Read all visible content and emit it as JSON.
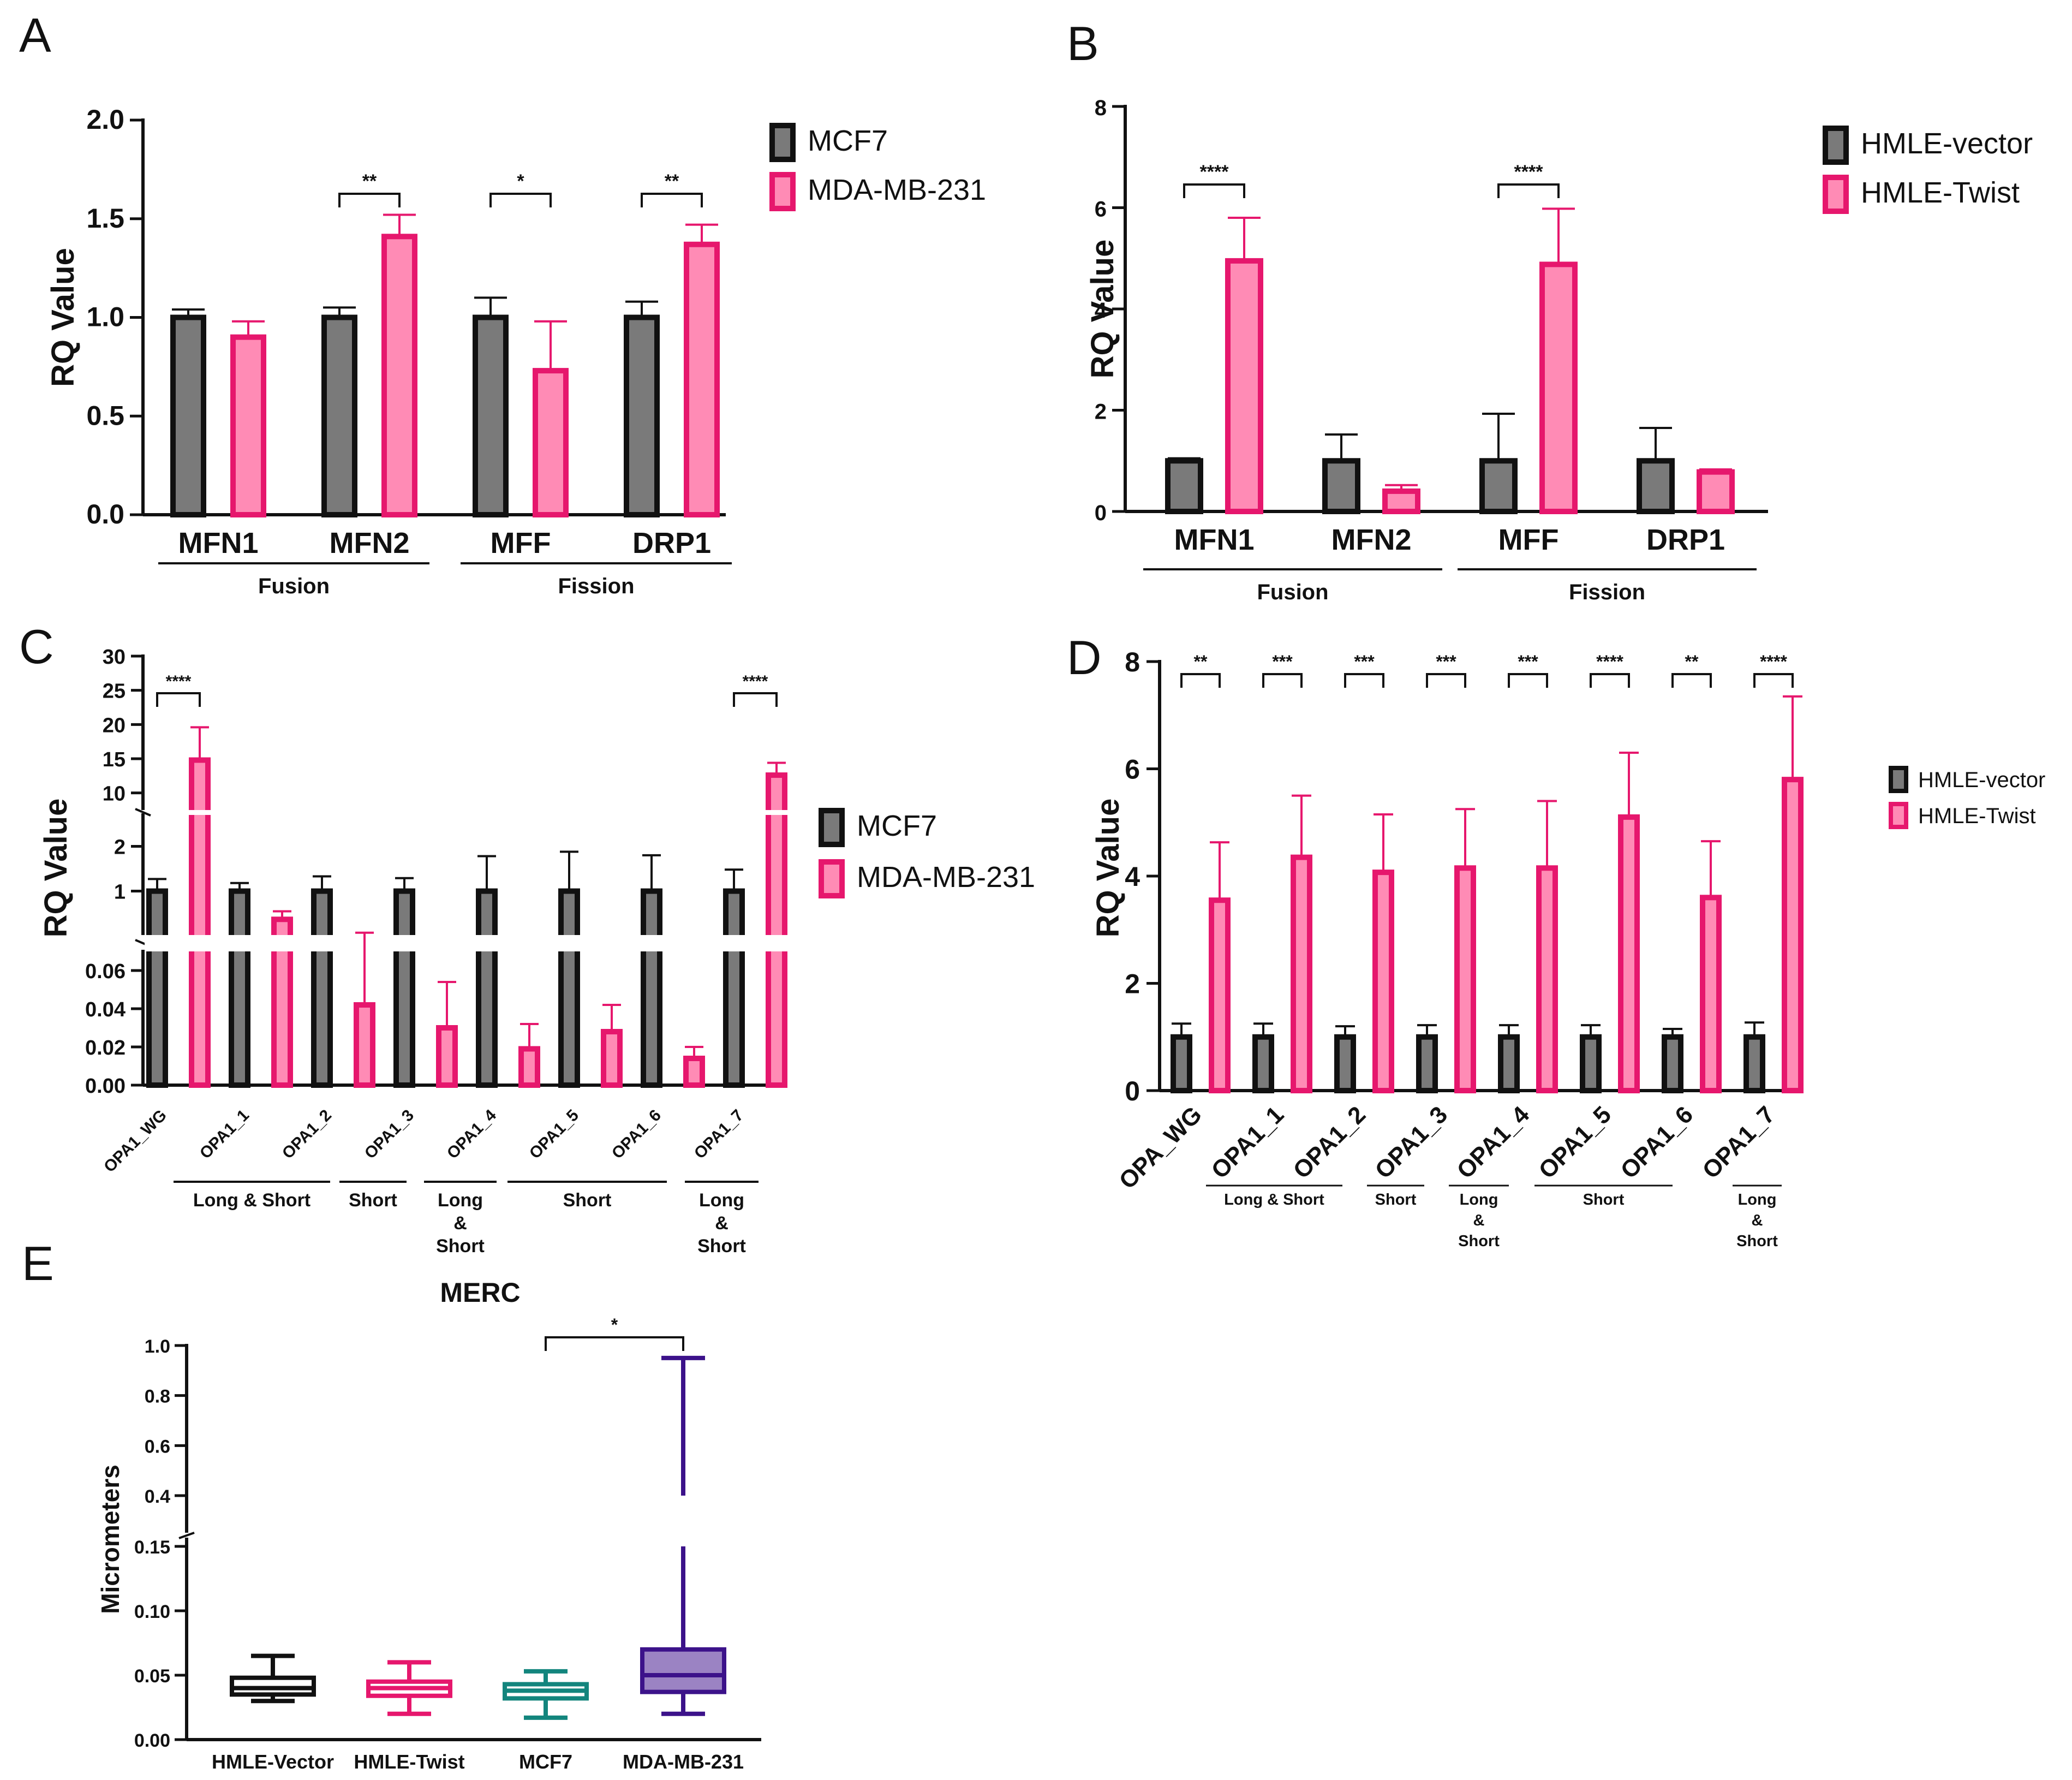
{
  "colors": {
    "gray": "#7a7a7a",
    "pink": "#ff8bb5",
    "magenta": "#e6176d",
    "purple": "#3c128a",
    "purpleFill": "#9b83c3",
    "teal": "#13857d",
    "black": "#111111"
  },
  "chart_data": [
    {
      "panel": "A",
      "type": "bar",
      "ylabel": "RQ Value",
      "yticks": [
        "0.0",
        "0.5",
        "1.0",
        "1.5",
        "2.0"
      ],
      "ylim": [
        0,
        2.0
      ],
      "categories": [
        "MFN1",
        "MFN2",
        "MFF",
        "DRP1"
      ],
      "series": [
        {
          "name": "MCF7",
          "values": [
            1.0,
            1.0,
            1.0,
            1.0
          ],
          "errors": [
            0.04,
            0.05,
            0.1,
            0.08
          ]
        },
        {
          "name": "MDA-MB-231",
          "values": [
            0.9,
            1.41,
            0.73,
            1.37
          ],
          "errors": [
            0.08,
            0.11,
            0.25,
            0.1
          ]
        }
      ],
      "significance": [
        {
          "category": "MFN2",
          "label": "**"
        },
        {
          "category": "MFF",
          "label": "*"
        },
        {
          "category": "DRP1",
          "label": "**"
        }
      ],
      "groups": [
        {
          "label": "Fusion",
          "from": "MFN1",
          "to": "MFN2"
        },
        {
          "label": "Fission",
          "from": "MFF",
          "to": "DRP1"
        }
      ]
    },
    {
      "panel": "B",
      "type": "bar",
      "ylabel": "RQ Value",
      "yticks": [
        "0",
        "2",
        "4",
        "6",
        "8"
      ],
      "ylim": [
        0,
        8
      ],
      "categories": [
        "MFN1",
        "MFN2",
        "MFF",
        "DRP1"
      ],
      "series": [
        {
          "name": "HMLE-vector",
          "values": [
            1.0,
            1.0,
            1.0,
            1.0
          ],
          "errors": [
            0.05,
            0.52,
            0.93,
            0.65
          ]
        },
        {
          "name": "HMLE-Twist",
          "values": [
            4.95,
            0.4,
            4.88,
            0.78
          ],
          "errors": [
            0.85,
            0.12,
            1.1,
            0.05
          ]
        }
      ],
      "significance": [
        {
          "category": "MFN1",
          "label": "****"
        },
        {
          "category": "MFF",
          "label": "****"
        }
      ],
      "groups": [
        {
          "label": "Fusion",
          "from": "MFN1",
          "to": "MFN2"
        },
        {
          "label": "Fission",
          "from": "MFF",
          "to": "DRP1"
        }
      ]
    },
    {
      "panel": "C",
      "type": "bar",
      "ylabel": "RQ Value",
      "yaxis": "broken",
      "ytick_segments": [
        [
          "0.00",
          "0.02",
          "0.04",
          "0.06"
        ],
        [
          "1",
          "2"
        ],
        [
          "10",
          "15",
          "20",
          "25",
          "30"
        ]
      ],
      "categories": [
        "OPA1_WG",
        "OPA1_1",
        "OPA1_2",
        "OPA1_3",
        "OPA1_4",
        "OPA1_5",
        "OPA1_6",
        "OPA1_7"
      ],
      "series": [
        {
          "name": "MCF7",
          "values": [
            1,
            1,
            1,
            1,
            1,
            1,
            1,
            1
          ],
          "errors": [
            0.27,
            0.18,
            0.33,
            0.29,
            0.78,
            0.88,
            0.8,
            0.48
          ]
        },
        {
          "name": "MDA-MB-231",
          "values": [
            14.8,
            0.37,
            0.042,
            0.03,
            0.019,
            0.028,
            0.014,
            12.6
          ],
          "errors": [
            4.8,
            0.18,
            0.03,
            0.024,
            0.013,
            0.014,
            0.006,
            1.8
          ]
        }
      ],
      "significance": [
        {
          "category": "OPA1_WG",
          "label": "****"
        },
        {
          "category": "OPA1_7",
          "label": "****"
        }
      ],
      "groups": [
        {
          "label": "Long & Short",
          "from": "OPA1_1",
          "to": "OPA1_2"
        },
        {
          "label": "Short",
          "from": "OPA1_3",
          "to": "OPA1_3"
        },
        {
          "label": "Long & Short",
          "from": "OPA1_4",
          "to": "OPA1_4"
        },
        {
          "label": "Short",
          "from": "OPA1_5",
          "to": "OPA1_6"
        },
        {
          "label": "Long & Short",
          "from": "OPA1_7",
          "to": "OPA1_7"
        }
      ]
    },
    {
      "panel": "D",
      "type": "bar",
      "ylabel": "RQ Value",
      "yticks": [
        "0",
        "2",
        "4",
        "6",
        "8"
      ],
      "ylim": [
        0,
        8
      ],
      "categories": [
        "OPA_WG",
        "OPA1_1",
        "OPA1_2",
        "OPA1_3",
        "OPA1_4",
        "OPA1_5",
        "OPA1_6",
        "OPA1_7"
      ],
      "series": [
        {
          "name": "HMLE-vector",
          "values": [
            1,
            1,
            1,
            1,
            1,
            1,
            1,
            1
          ],
          "errors": [
            0.25,
            0.25,
            0.2,
            0.22,
            0.22,
            0.22,
            0.15,
            0.27
          ]
        },
        {
          "name": "HMLE-Twist",
          "values": [
            3.55,
            4.35,
            4.07,
            4.15,
            4.15,
            5.1,
            3.6,
            5.8
          ],
          "errors": [
            1.08,
            1.15,
            1.08,
            1.1,
            1.25,
            1.2,
            1.05,
            1.55
          ]
        }
      ],
      "significance": [
        {
          "category": "OPA_WG",
          "label": "**"
        },
        {
          "category": "OPA1_1",
          "label": "***"
        },
        {
          "category": "OPA1_2",
          "label": "***"
        },
        {
          "category": "OPA1_3",
          "label": "***"
        },
        {
          "category": "OPA1_4",
          "label": "***"
        },
        {
          "category": "OPA1_5",
          "label": "****"
        },
        {
          "category": "OPA1_6",
          "label": "**"
        },
        {
          "category": "OPA1_7",
          "label": "****"
        }
      ],
      "groups": [
        {
          "label": "Long & Short",
          "from": "OPA1_1",
          "to": "OPA1_2"
        },
        {
          "label": "Short",
          "from": "OPA1_3",
          "to": "OPA1_3"
        },
        {
          "label": "Long & Short",
          "from": "OPA1_4",
          "to": "OPA1_4"
        },
        {
          "label": "Short",
          "from": "OPA1_5",
          "to": "OPA1_6"
        },
        {
          "label": "Long & Short",
          "from": "OPA1_7",
          "to": "OPA1_7"
        }
      ]
    },
    {
      "panel": "E",
      "type": "box",
      "title": "MERC",
      "ylabel": "Micrometers",
      "yaxis": "broken",
      "yticks_lower": [
        "0.00",
        "0.05",
        "0.10",
        "0.15"
      ],
      "yticks_upper": [
        "0.4",
        "0.6",
        "0.8",
        "1.0"
      ],
      "categories": [
        "HMLE-Vector",
        "HMLE-Twist",
        "MCF7",
        "MDA-MB-231"
      ],
      "boxes": [
        {
          "name": "HMLE-Vector",
          "min": 0.03,
          "q1": 0.035,
          "median": 0.04,
          "q3": 0.048,
          "max": 0.065
        },
        {
          "name": "HMLE-Twist",
          "min": 0.02,
          "q1": 0.034,
          "median": 0.04,
          "q3": 0.045,
          "max": 0.06
        },
        {
          "name": "MCF7",
          "min": 0.017,
          "q1": 0.032,
          "median": 0.038,
          "q3": 0.043,
          "max": 0.053
        },
        {
          "name": "MDA-MB-231",
          "min": 0.02,
          "q1": 0.037,
          "median": 0.05,
          "q3": 0.07,
          "max": 0.95
        }
      ],
      "significance": [
        {
          "from": "MCF7",
          "to": "MDA-MB-231",
          "label": "*"
        }
      ]
    }
  ]
}
